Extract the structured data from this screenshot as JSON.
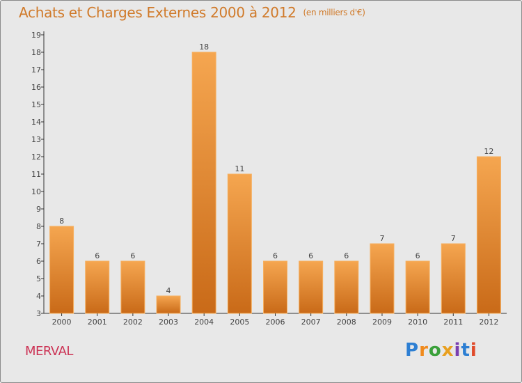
{
  "title": "Achats et Charges Externes 2000 à 2012",
  "unit": "(en milliers d'€)",
  "location": "MERVAL",
  "brand": {
    "letters": [
      "P",
      "r",
      "o",
      "x",
      "i",
      "t",
      "i"
    ],
    "colors": [
      "#2d7fd3",
      "#f08a1c",
      "#3aa03a",
      "#e8a020",
      "#7a3fb0",
      "#2d7fd3",
      "#e04a2a"
    ]
  },
  "colors": {
    "bar": "#e88a30",
    "bar_top": "#f5a650",
    "bar_bottom": "#c96a18",
    "title": "#d07a2a"
  },
  "chart_data": {
    "type": "bar",
    "categories": [
      "2000",
      "2001",
      "2002",
      "2003",
      "2004",
      "2005",
      "2006",
      "2007",
      "2008",
      "2009",
      "2010",
      "2011",
      "2012"
    ],
    "values": [
      8,
      6,
      6,
      4,
      18,
      11,
      6,
      6,
      6,
      7,
      6,
      7,
      12
    ],
    "data_labels": [
      "8",
      "6",
      "6",
      "4",
      "18",
      "11",
      "6",
      "6",
      "6",
      "7",
      "6",
      "7",
      "12"
    ],
    "yticks": [
      "3",
      "4",
      "5",
      "6",
      "7",
      "8",
      "9",
      "10",
      "11",
      "12",
      "13",
      "14",
      "15",
      "16",
      "17",
      "18",
      "19"
    ],
    "ylim": [
      3,
      19
    ],
    "grid": false,
    "xlabel": "",
    "ylabel": ""
  }
}
